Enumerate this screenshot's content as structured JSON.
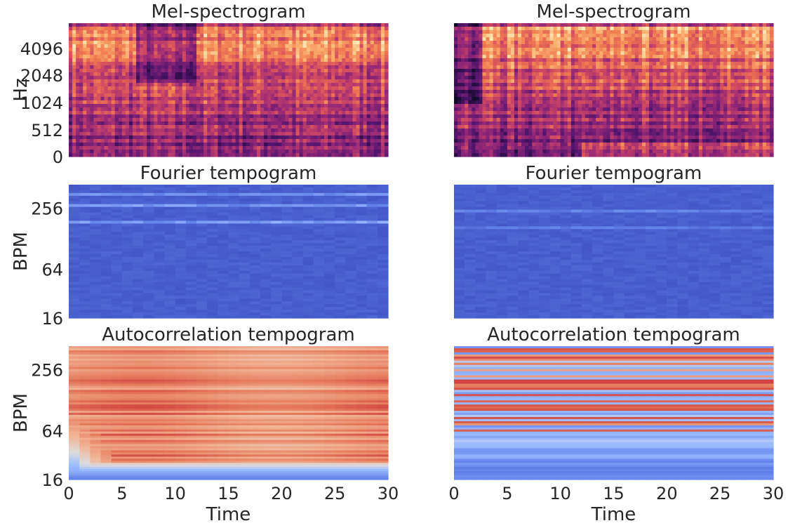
{
  "chart_data": [
    {
      "type": "heatmap",
      "panel": "top-left",
      "title": "Mel-spectrogram",
      "ylabel": "Hz",
      "xlabel": "",
      "colormap": "magma",
      "y_scale": "mel",
      "y_ticks": [
        "0",
        "512",
        "1024",
        "2048",
        "4096"
      ],
      "x_ticks": [],
      "xlim": [
        0,
        30
      ]
    },
    {
      "type": "heatmap",
      "panel": "top-right",
      "title": "Mel-spectrogram",
      "ylabel": "",
      "xlabel": "",
      "colormap": "magma",
      "y_ticks": [],
      "x_ticks": [],
      "xlim": [
        0,
        30
      ]
    },
    {
      "type": "heatmap",
      "panel": "middle-left",
      "title": "Fourier tempogram",
      "ylabel": "BPM",
      "xlabel": "",
      "colormap": "coolwarm",
      "y_scale": "log2",
      "y_ticks": [
        "16",
        "64",
        "256"
      ],
      "x_ticks": [],
      "xlim": [
        0,
        30
      ]
    },
    {
      "type": "heatmap",
      "panel": "middle-right",
      "title": "Fourier tempogram",
      "ylabel": "",
      "xlabel": "",
      "colormap": "coolwarm",
      "y_ticks": [],
      "x_ticks": [],
      "xlim": [
        0,
        30
      ]
    },
    {
      "type": "heatmap",
      "panel": "bottom-left",
      "title": "Autocorrelation tempogram",
      "ylabel": "BPM",
      "xlabel": "Time",
      "colormap": "coolwarm",
      "y_scale": "log2",
      "y_ticks": [
        "16",
        "64",
        "256"
      ],
      "x_ticks": [
        "0",
        "5",
        "10",
        "15",
        "20",
        "25",
        "30"
      ],
      "xlim": [
        0,
        30
      ]
    },
    {
      "type": "heatmap",
      "panel": "bottom-right",
      "title": "Autocorrelation tempogram",
      "ylabel": "",
      "xlabel": "Time",
      "colormap": "coolwarm",
      "y_ticks": [],
      "x_ticks": [
        "0",
        "5",
        "10",
        "15",
        "20",
        "25",
        "30"
      ],
      "xlim": [
        0,
        30
      ]
    }
  ]
}
